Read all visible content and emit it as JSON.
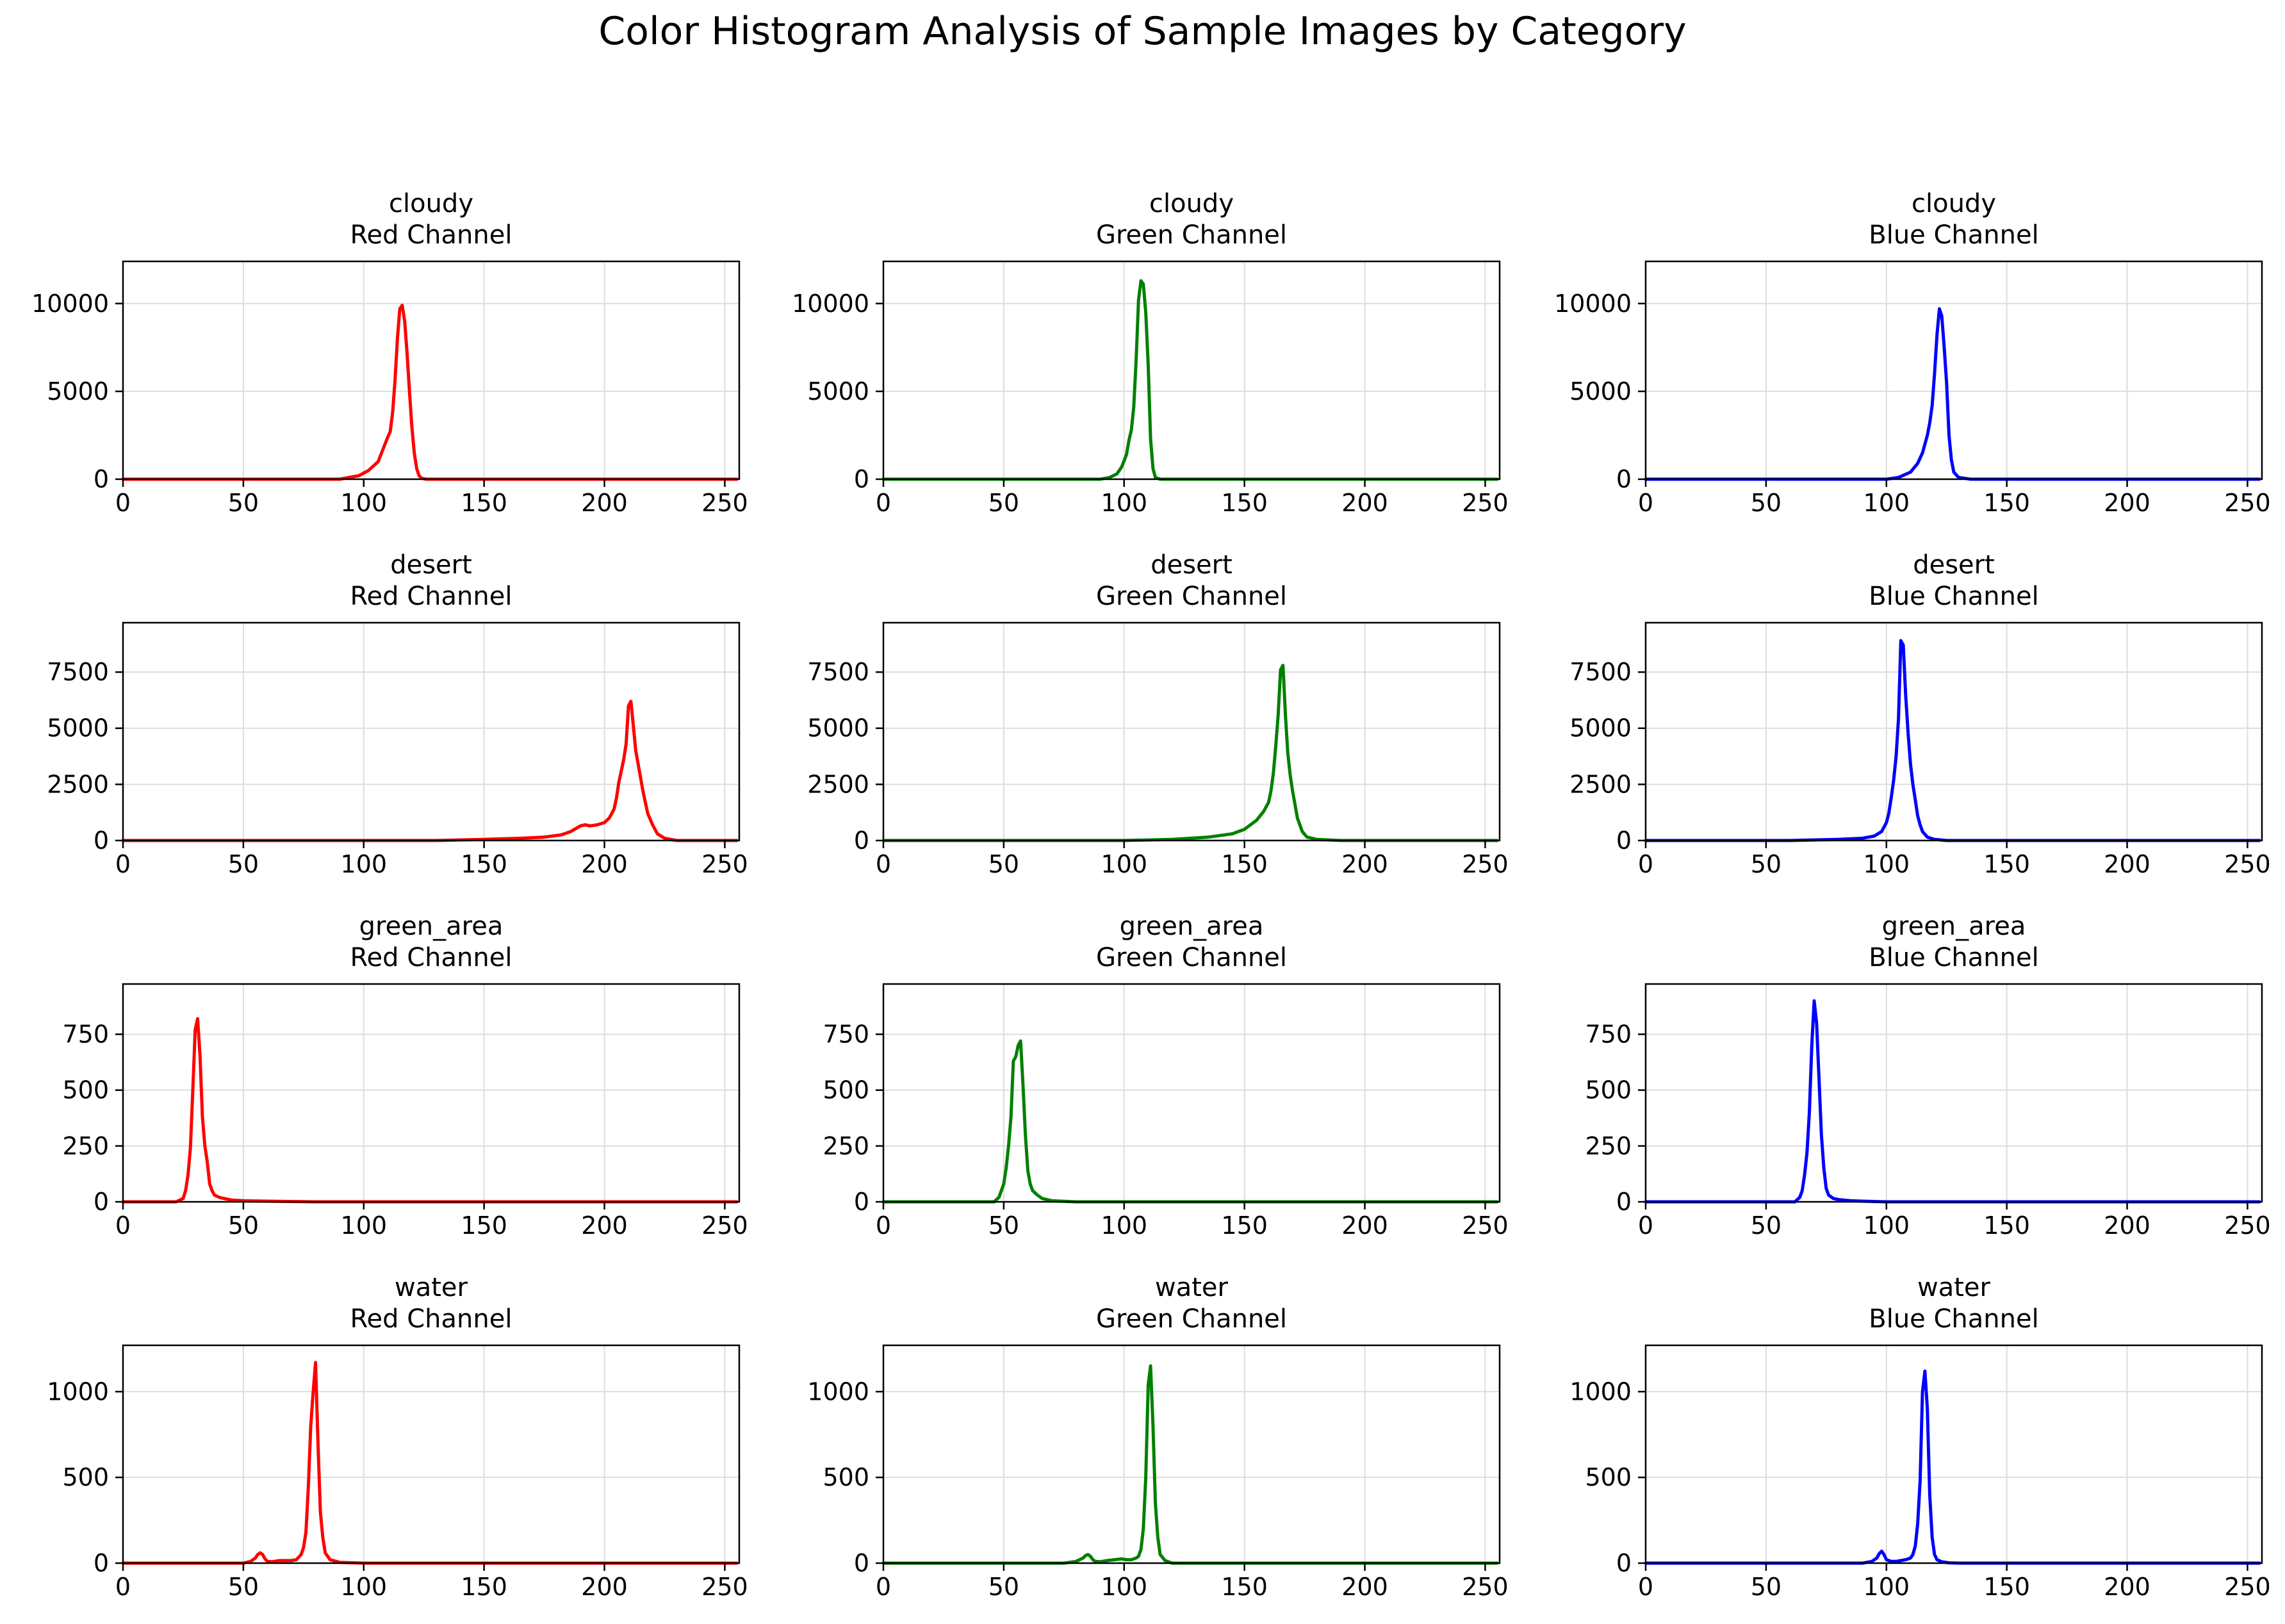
{
  "figure": {
    "title": "Color Histogram Analysis of Sample Images by Category"
  },
  "chart_data": [
    {
      "type": "line",
      "title": "cloudy",
      "subtitle": "Red Channel",
      "color": "#ff0000",
      "xlim": [
        0,
        256
      ],
      "ylim": [
        0,
        12400
      ],
      "xticks": [
        0,
        50,
        100,
        150,
        200,
        250
      ],
      "yticks": [
        0,
        5000,
        10000
      ],
      "grid": true,
      "series": [
        {
          "x": [
            0,
            90,
            98,
            102,
            106,
            108,
            110,
            111,
            112,
            113,
            114,
            115,
            116,
            117,
            118,
            119,
            120,
            121,
            122,
            123,
            124,
            126,
            130,
            255
          ],
          "y": [
            0,
            0,
            200,
            500,
            1000,
            1700,
            2400,
            2700,
            3800,
            5600,
            8000,
            9700,
            9900,
            9000,
            7200,
            5000,
            3000,
            1500,
            600,
            200,
            50,
            0,
            0,
            0
          ]
        }
      ]
    },
    {
      "type": "line",
      "title": "cloudy",
      "subtitle": "Green Channel",
      "color": "#008000",
      "xlim": [
        0,
        256
      ],
      "ylim": [
        0,
        12400
      ],
      "xticks": [
        0,
        50,
        100,
        150,
        200,
        250
      ],
      "yticks": [
        0,
        5000,
        10000
      ],
      "grid": true,
      "series": [
        {
          "x": [
            0,
            90,
            94,
            97,
            99,
            101,
            102,
            103,
            104,
            105,
            106,
            107,
            108,
            109,
            110,
            111,
            112,
            113,
            115,
            120,
            255
          ],
          "y": [
            0,
            0,
            100,
            300,
            700,
            1400,
            2200,
            2800,
            4100,
            6800,
            10200,
            11300,
            11100,
            9500,
            6500,
            2300,
            600,
            100,
            0,
            0,
            0
          ]
        }
      ]
    },
    {
      "type": "line",
      "title": "cloudy",
      "subtitle": "Blue Channel",
      "color": "#0000ff",
      "xlim": [
        0,
        256
      ],
      "ylim": [
        0,
        12400
      ],
      "xticks": [
        0,
        50,
        100,
        150,
        200,
        250
      ],
      "yticks": [
        0,
        5000,
        10000
      ],
      "grid": true,
      "series": [
        {
          "x": [
            0,
            100,
            105,
            110,
            113,
            115,
            117,
            118,
            119,
            120,
            121,
            122,
            123,
            124,
            125,
            126,
            127,
            128,
            130,
            135,
            255
          ],
          "y": [
            0,
            0,
            100,
            400,
            900,
            1500,
            2500,
            3200,
            4200,
            6000,
            8200,
            9700,
            9300,
            7500,
            5500,
            2500,
            1100,
            400,
            100,
            0,
            0
          ]
        }
      ]
    },
    {
      "type": "line",
      "title": "desert",
      "subtitle": "Red Channel",
      "color": "#ff0000",
      "xlim": [
        0,
        256
      ],
      "ylim": [
        0,
        9700
      ],
      "xticks": [
        0,
        50,
        100,
        150,
        200,
        250
      ],
      "yticks": [
        0,
        2500,
        5000,
        7500
      ],
      "grid": true,
      "series": [
        {
          "x": [
            0,
            130,
            150,
            165,
            175,
            182,
            186,
            190,
            192,
            194,
            197,
            200,
            202,
            204,
            205,
            206,
            207,
            208,
            209,
            210,
            211,
            212,
            213,
            214,
            216,
            218,
            220,
            222,
            225,
            230,
            255
          ],
          "y": [
            0,
            0,
            50,
            100,
            150,
            250,
            400,
            650,
            700,
            650,
            700,
            800,
            1000,
            1400,
            1900,
            2600,
            3100,
            3600,
            4300,
            6000,
            6200,
            5100,
            4000,
            3400,
            2200,
            1200,
            700,
            300,
            100,
            0,
            0
          ]
        }
      ]
    },
    {
      "type": "line",
      "title": "desert",
      "subtitle": "Green Channel",
      "color": "#008000",
      "xlim": [
        0,
        256
      ],
      "ylim": [
        0,
        9700
      ],
      "xticks": [
        0,
        50,
        100,
        150,
        200,
        250
      ],
      "yticks": [
        0,
        2500,
        5000,
        7500
      ],
      "grid": true,
      "series": [
        {
          "x": [
            0,
            100,
            120,
            135,
            145,
            150,
            155,
            158,
            160,
            161,
            162,
            163,
            164,
            165,
            166,
            167,
            168,
            169,
            170,
            171,
            172,
            174,
            176,
            180,
            190,
            255
          ],
          "y": [
            0,
            0,
            50,
            150,
            300,
            500,
            900,
            1300,
            1700,
            2200,
            3000,
            4200,
            5600,
            7600,
            7800,
            5600,
            3900,
            2900,
            2200,
            1600,
            1000,
            400,
            150,
            50,
            0,
            0
          ]
        }
      ]
    },
    {
      "type": "line",
      "title": "desert",
      "subtitle": "Blue Channel",
      "color": "#0000ff",
      "xlim": [
        0,
        256
      ],
      "ylim": [
        0,
        9700
      ],
      "xticks": [
        0,
        50,
        100,
        150,
        200,
        250
      ],
      "yticks": [
        0,
        2500,
        5000,
        7500
      ],
      "grid": true,
      "series": [
        {
          "x": [
            0,
            60,
            80,
            90,
            95,
            98,
            100,
            101,
            102,
            103,
            104,
            105,
            106,
            107,
            108,
            109,
            110,
            111,
            112,
            113,
            114,
            115,
            117,
            120,
            125,
            255
          ],
          "y": [
            0,
            0,
            50,
            100,
            200,
            400,
            800,
            1200,
            1900,
            2700,
            3700,
            5400,
            8900,
            8700,
            6500,
            4800,
            3400,
            2500,
            1800,
            1100,
            700,
            400,
            150,
            50,
            0,
            0
          ]
        }
      ]
    },
    {
      "type": "line",
      "title": "green_area",
      "subtitle": "Red Channel",
      "color": "#ff0000",
      "xlim": [
        0,
        256
      ],
      "ylim": [
        0,
        975
      ],
      "xticks": [
        0,
        50,
        100,
        150,
        200,
        250
      ],
      "yticks": [
        0,
        250,
        500,
        750
      ],
      "grid": true,
      "series": [
        {
          "x": [
            0,
            22,
            25,
            26,
            27,
            28,
            29,
            30,
            31,
            32,
            33,
            34,
            35,
            36,
            37,
            38,
            40,
            42,
            45,
            50,
            60,
            80,
            255
          ],
          "y": [
            0,
            0,
            15,
            50,
            120,
            240,
            500,
            770,
            820,
            650,
            380,
            250,
            180,
            80,
            50,
            30,
            20,
            15,
            8,
            5,
            3,
            0,
            0
          ]
        }
      ]
    },
    {
      "type": "line",
      "title": "green_area",
      "subtitle": "Green Channel",
      "color": "#008000",
      "xlim": [
        0,
        256
      ],
      "ylim": [
        0,
        975
      ],
      "xticks": [
        0,
        50,
        100,
        150,
        200,
        250
      ],
      "yticks": [
        0,
        250,
        500,
        750
      ],
      "grid": true,
      "series": [
        {
          "x": [
            0,
            46,
            48,
            50,
            51,
            52,
            53,
            54,
            55,
            56,
            57,
            58,
            59,
            60,
            61,
            62,
            64,
            66,
            70,
            80,
            255
          ],
          "y": [
            0,
            0,
            20,
            80,
            150,
            250,
            380,
            630,
            650,
            700,
            720,
            520,
            300,
            140,
            80,
            50,
            30,
            15,
            5,
            0,
            0
          ]
        }
      ]
    },
    {
      "type": "line",
      "title": "green_area",
      "subtitle": "Blue Channel",
      "color": "#0000ff",
      "xlim": [
        0,
        256
      ],
      "ylim": [
        0,
        975
      ],
      "xticks": [
        0,
        50,
        100,
        150,
        200,
        250
      ],
      "yticks": [
        0,
        250,
        500,
        750
      ],
      "grid": true,
      "series": [
        {
          "x": [
            0,
            62,
            64,
            65,
            66,
            67,
            68,
            69,
            70,
            71,
            72,
            73,
            74,
            75,
            76,
            78,
            80,
            85,
            90,
            100,
            255
          ],
          "y": [
            0,
            0,
            20,
            50,
            120,
            220,
            400,
            700,
            900,
            800,
            550,
            300,
            150,
            60,
            30,
            15,
            10,
            5,
            3,
            0,
            0
          ]
        }
      ]
    },
    {
      "type": "line",
      "title": "water",
      "subtitle": "Red Channel",
      "color": "#ff0000",
      "xlim": [
        0,
        256
      ],
      "ylim": [
        0,
        1270
      ],
      "xticks": [
        0,
        50,
        100,
        150,
        200,
        250
      ],
      "yticks": [
        0,
        500,
        1000
      ],
      "grid": true,
      "series": [
        {
          "x": [
            0,
            50,
            53,
            55,
            56,
            57,
            58,
            59,
            60,
            62,
            65,
            70,
            72,
            74,
            75,
            76,
            77,
            78,
            79,
            80,
            81,
            82,
            83,
            84,
            86,
            90,
            100,
            255
          ],
          "y": [
            0,
            0,
            10,
            30,
            50,
            60,
            50,
            25,
            10,
            8,
            15,
            15,
            20,
            50,
            90,
            180,
            450,
            800,
            1000,
            1170,
            700,
            300,
            150,
            60,
            20,
            5,
            0,
            0
          ]
        }
      ]
    },
    {
      "type": "line",
      "title": "water",
      "subtitle": "Green Channel",
      "color": "#008000",
      "xlim": [
        0,
        256
      ],
      "ylim": [
        0,
        1270
      ],
      "xticks": [
        0,
        50,
        100,
        150,
        200,
        250
      ],
      "yticks": [
        0,
        500,
        1000
      ],
      "grid": true,
      "series": [
        {
          "x": [
            0,
            75,
            80,
            83,
            84,
            85,
            86,
            87,
            88,
            90,
            93,
            96,
            99,
            101,
            103,
            104,
            105,
            106,
            107,
            108,
            109,
            110,
            111,
            112,
            113,
            114,
            115,
            117,
            120,
            255
          ],
          "y": [
            0,
            0,
            10,
            30,
            45,
            50,
            40,
            20,
            10,
            8,
            15,
            20,
            25,
            20,
            20,
            25,
            30,
            40,
            80,
            200,
            500,
            1040,
            1150,
            800,
            350,
            150,
            50,
            15,
            0,
            0
          ]
        }
      ]
    },
    {
      "type": "line",
      "title": "water",
      "subtitle": "Blue Channel",
      "color": "#0000ff",
      "xlim": [
        0,
        256
      ],
      "ylim": [
        0,
        1270
      ],
      "xticks": [
        0,
        50,
        100,
        150,
        200,
        250
      ],
      "yticks": [
        0,
        500,
        1000
      ],
      "grid": true,
      "series": [
        {
          "x": [
            0,
            90,
            94,
            96,
            97,
            98,
            99,
            100,
            102,
            104,
            106,
            108,
            110,
            111,
            112,
            113,
            114,
            115,
            116,
            117,
            118,
            119,
            120,
            121,
            123,
            126,
            130,
            255
          ],
          "y": [
            0,
            0,
            10,
            30,
            55,
            70,
            50,
            20,
            10,
            10,
            15,
            20,
            30,
            50,
            100,
            230,
            480,
            1000,
            1120,
            900,
            400,
            150,
            50,
            20,
            8,
            2,
            0,
            0
          ]
        }
      ]
    }
  ]
}
